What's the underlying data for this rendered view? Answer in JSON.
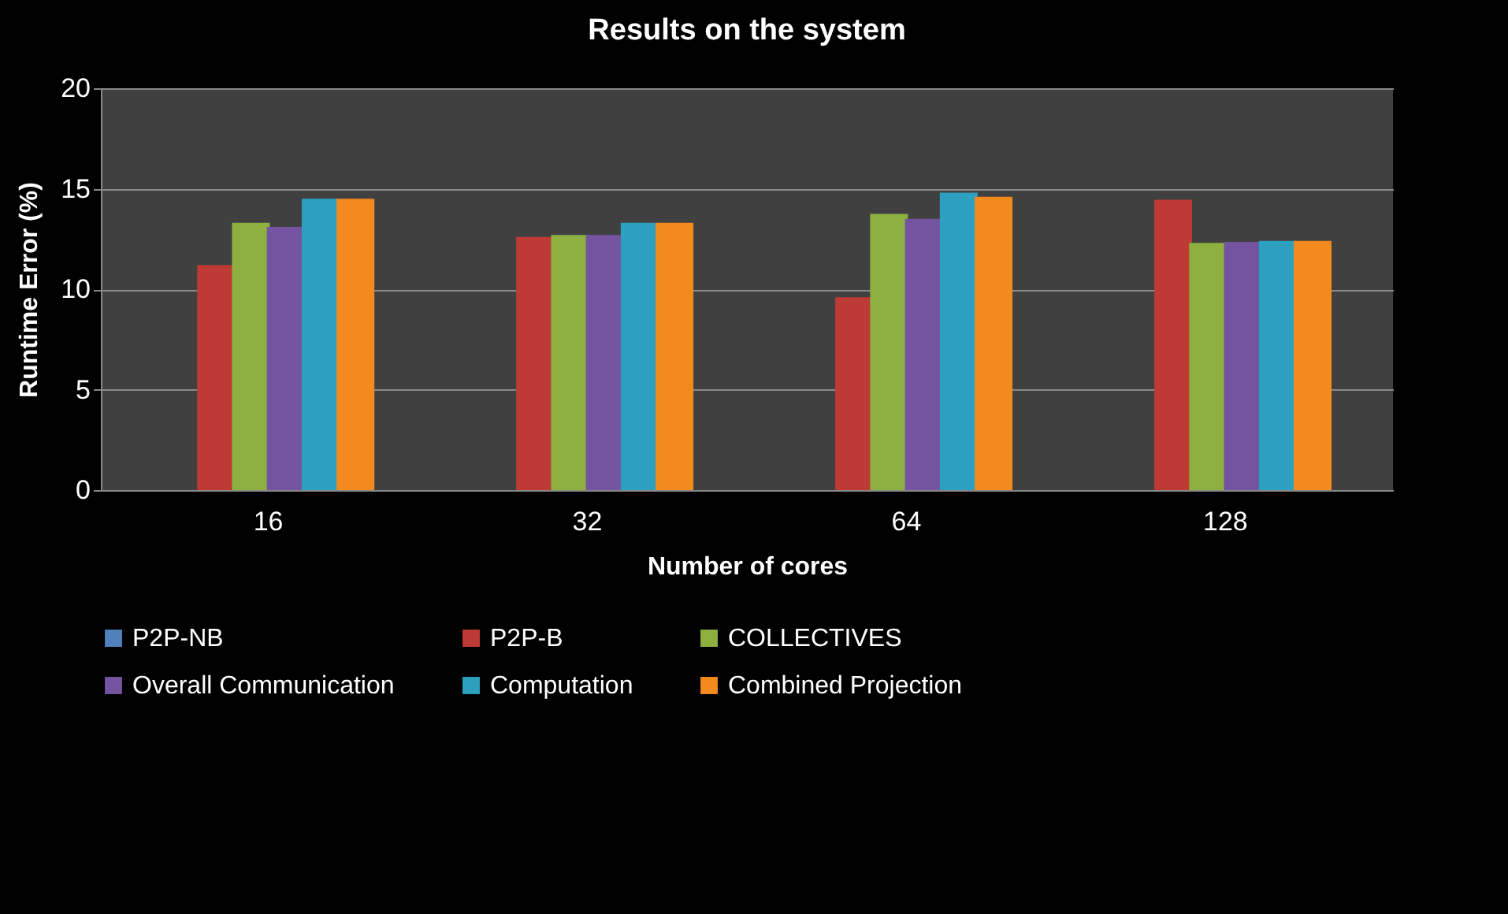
{
  "chart_data": {
    "type": "bar",
    "title": "Results on the system",
    "xlabel": "Number of cores",
    "ylabel": "Runtime Error (%)",
    "categories": [
      "16",
      "32",
      "64",
      "128"
    ],
    "series": [
      {
        "name": "P2P-NB",
        "color": "#4f81bd",
        "values": [
          null,
          null,
          null,
          null
        ]
      },
      {
        "name": "P2P-B",
        "color": "#be3a34",
        "values": [
          11.2,
          12.6,
          9.6,
          14.45
        ]
      },
      {
        "name": "COLLECTIVES",
        "color": "#8db040",
        "values": [
          13.3,
          12.7,
          13.75,
          12.3
        ]
      },
      {
        "name": "Overall Communication",
        "color": "#7453a0",
        "values": [
          13.1,
          12.7,
          13.5,
          12.35
        ]
      },
      {
        "name": "Computation",
        "color": "#2da0c0",
        "values": [
          14.5,
          13.3,
          14.8,
          12.4
        ]
      },
      {
        "name": "Combined Projection",
        "color": "#f28a1d",
        "values": [
          14.5,
          13.3,
          14.6,
          12.4
        ]
      }
    ],
    "ylim": [
      0,
      20
    ],
    "yticks": [
      0,
      5,
      10,
      15,
      20
    ],
    "grid": "y",
    "legend": "bottom"
  }
}
